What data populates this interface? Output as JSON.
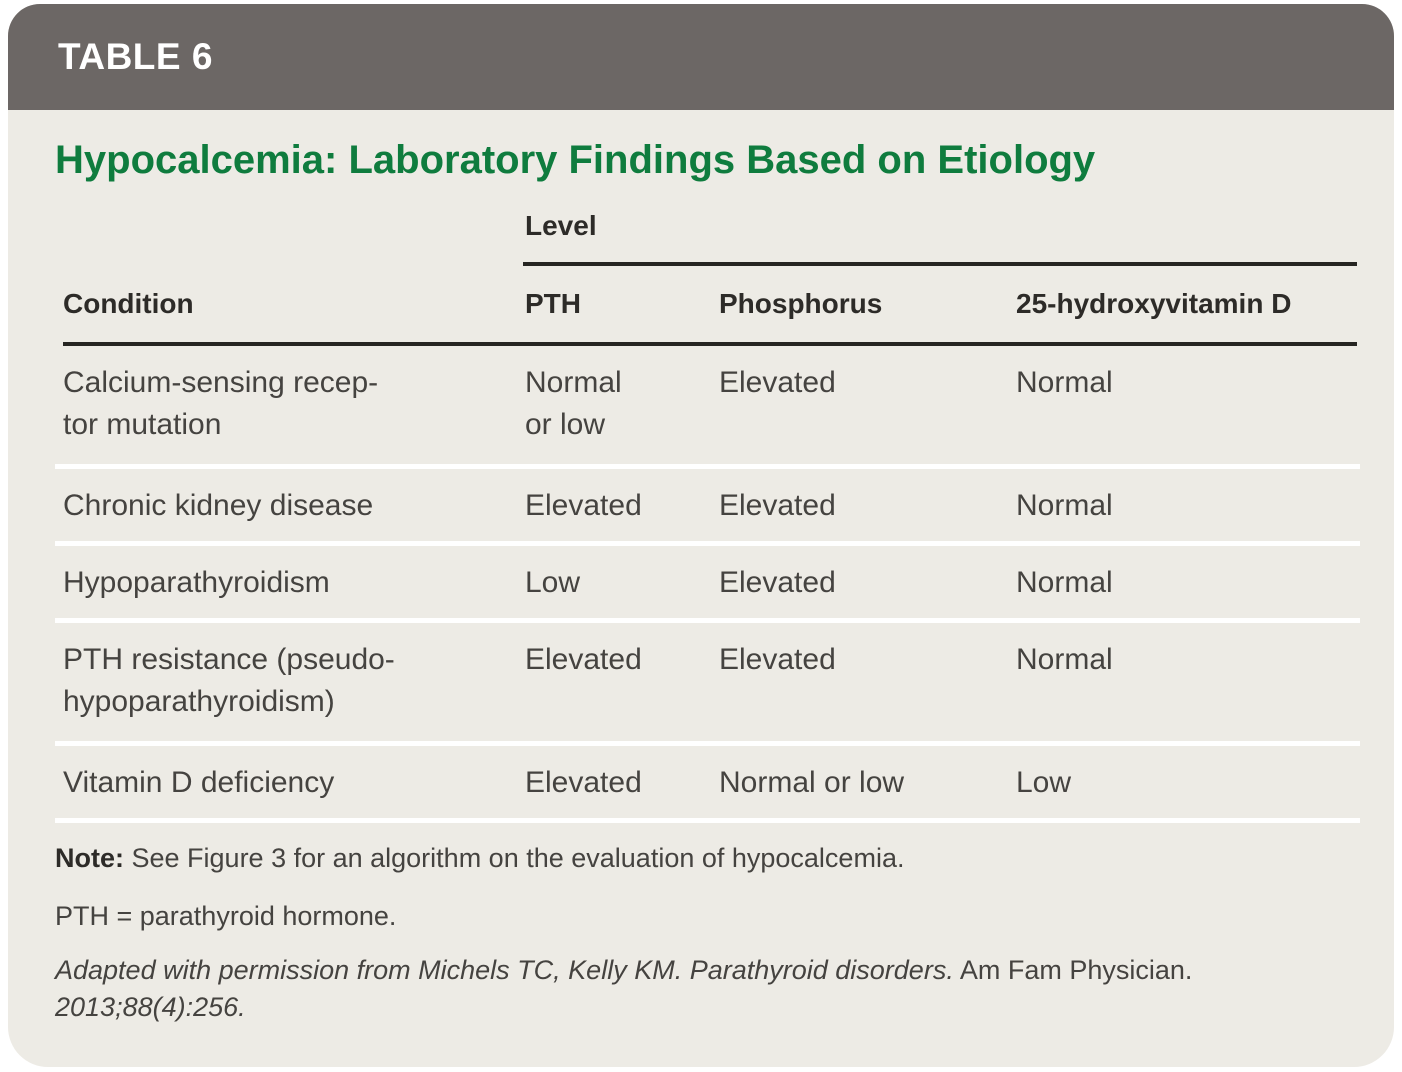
{
  "colors": {
    "header_bar": "#6c6765",
    "card_background": "#edebe5",
    "title_green": "#0f7c3e",
    "rule_dark": "#262522",
    "row_separator": "#ffffff",
    "text_dark": "#454340"
  },
  "header": {
    "table_tag": "TABLE 6"
  },
  "title": "Hypocalcemia: Laboratory Findings Based on Etiology",
  "table": {
    "level_group_label": "Level",
    "columns": {
      "condition": "Condition",
      "pth": "PTH",
      "phosphorus": "Phosphorus",
      "vitamin_d": "25-hydroxyvitamin D"
    },
    "rows": [
      {
        "condition": "Calcium-sensing recep-\ntor mutation",
        "pth": "Normal\nor low",
        "phosphorus": "Elevated",
        "vitamin_d": "Normal"
      },
      {
        "condition": "Chronic kidney disease",
        "pth": "Elevated",
        "phosphorus": "Elevated",
        "vitamin_d": "Normal"
      },
      {
        "condition": "Hypoparathyroidism",
        "pth": "Low",
        "phosphorus": "Elevated",
        "vitamin_d": "Normal"
      },
      {
        "condition": "PTH resistance (pseudo-\nhypoparathyroidism)",
        "pth": "Elevated",
        "phosphorus": "Elevated",
        "vitamin_d": "Normal"
      },
      {
        "condition": "Vitamin D deficiency",
        "pth": "Elevated",
        "phosphorus": "Normal or low",
        "vitamin_d": "Low"
      }
    ]
  },
  "footnotes": {
    "note_label": "Note:",
    "note_text": " See Figure 3 for an algorithm on the evaluation of hypocalcemia.",
    "abbreviation": "PTH = parathyroid hormone.",
    "citation_adapted": "Adapted with permission from Michels TC, Kelly KM. Parathyroid disorders.",
    "citation_journal": " Am Fam Physician.",
    "citation_volume": "2013;88(4):256."
  }
}
